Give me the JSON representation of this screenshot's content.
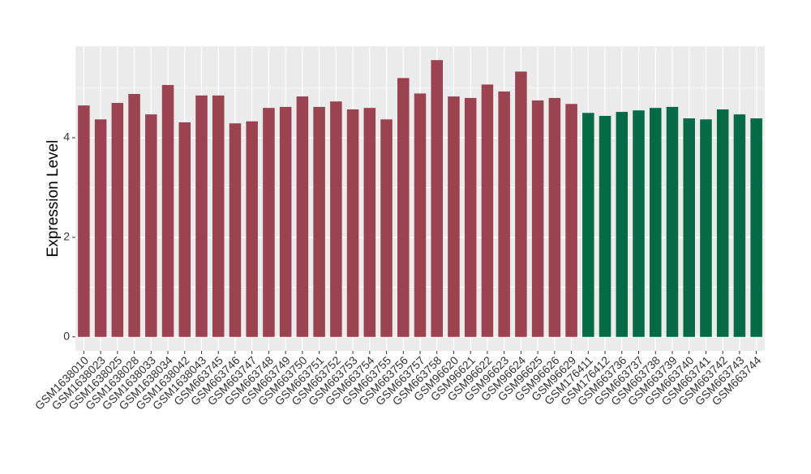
{
  "chart_data": {
    "type": "bar",
    "y_label": "Expression Level",
    "categories": [
      "GSM1638010",
      "GSM1638023",
      "GSM1638025",
      "GSM1638028",
      "GSM1638033",
      "GSM1638034",
      "GSM1638042",
      "GSM1638043",
      "GSM663745",
      "GSM663746",
      "GSM663747",
      "GSM663748",
      "GSM663749",
      "GSM663750",
      "GSM663751",
      "GSM663752",
      "GSM663753",
      "GSM663754",
      "GSM663755",
      "GSM663756",
      "GSM663757",
      "GSM663758",
      "GSM96620",
      "GSM96621",
      "GSM96622",
      "GSM96623",
      "GSM96624",
      "GSM96625",
      "GSM96626",
      "GSM96629",
      "GSM176411",
      "GSM176412",
      "GSM663736",
      "GSM663737",
      "GSM663738",
      "GSM663739",
      "GSM663740",
      "GSM663741",
      "GSM663742",
      "GSM663743",
      "GSM663744"
    ],
    "values": [
      4.65,
      4.37,
      4.7,
      4.88,
      4.47,
      5.06,
      4.31,
      4.85,
      4.85,
      4.29,
      4.33,
      4.6,
      4.62,
      4.83,
      4.62,
      4.73,
      4.57,
      4.6,
      4.37,
      5.2,
      4.89,
      5.56,
      4.83,
      4.8,
      5.07,
      4.93,
      5.33,
      4.75,
      4.8,
      4.68,
      4.5,
      4.44,
      4.52,
      4.55,
      4.6,
      4.62,
      4.39,
      4.37,
      4.57,
      4.47,
      4.39
    ],
    "colors": [
      "#9b4350",
      "#9b4350",
      "#9b4350",
      "#9b4350",
      "#9b4350",
      "#9b4350",
      "#9b4350",
      "#9b4350",
      "#9b4350",
      "#9b4350",
      "#9b4350",
      "#9b4350",
      "#9b4350",
      "#9b4350",
      "#9b4350",
      "#9b4350",
      "#9b4350",
      "#9b4350",
      "#9b4350",
      "#9b4350",
      "#9b4350",
      "#9b4350",
      "#9b4350",
      "#9b4350",
      "#9b4350",
      "#9b4350",
      "#9b4350",
      "#9b4350",
      "#9b4350",
      "#9b4350",
      "#066a47",
      "#066a47",
      "#066a47",
      "#066a47",
      "#066a47",
      "#066a47",
      "#066a47",
      "#066a47",
      "#066a47",
      "#066a47",
      "#066a47"
    ],
    "ylim": [
      -0.28,
      5.84
    ],
    "yticks": [
      0,
      2,
      4
    ],
    "minor_yticks": [
      1,
      3,
      5
    ],
    "grid": true
  }
}
